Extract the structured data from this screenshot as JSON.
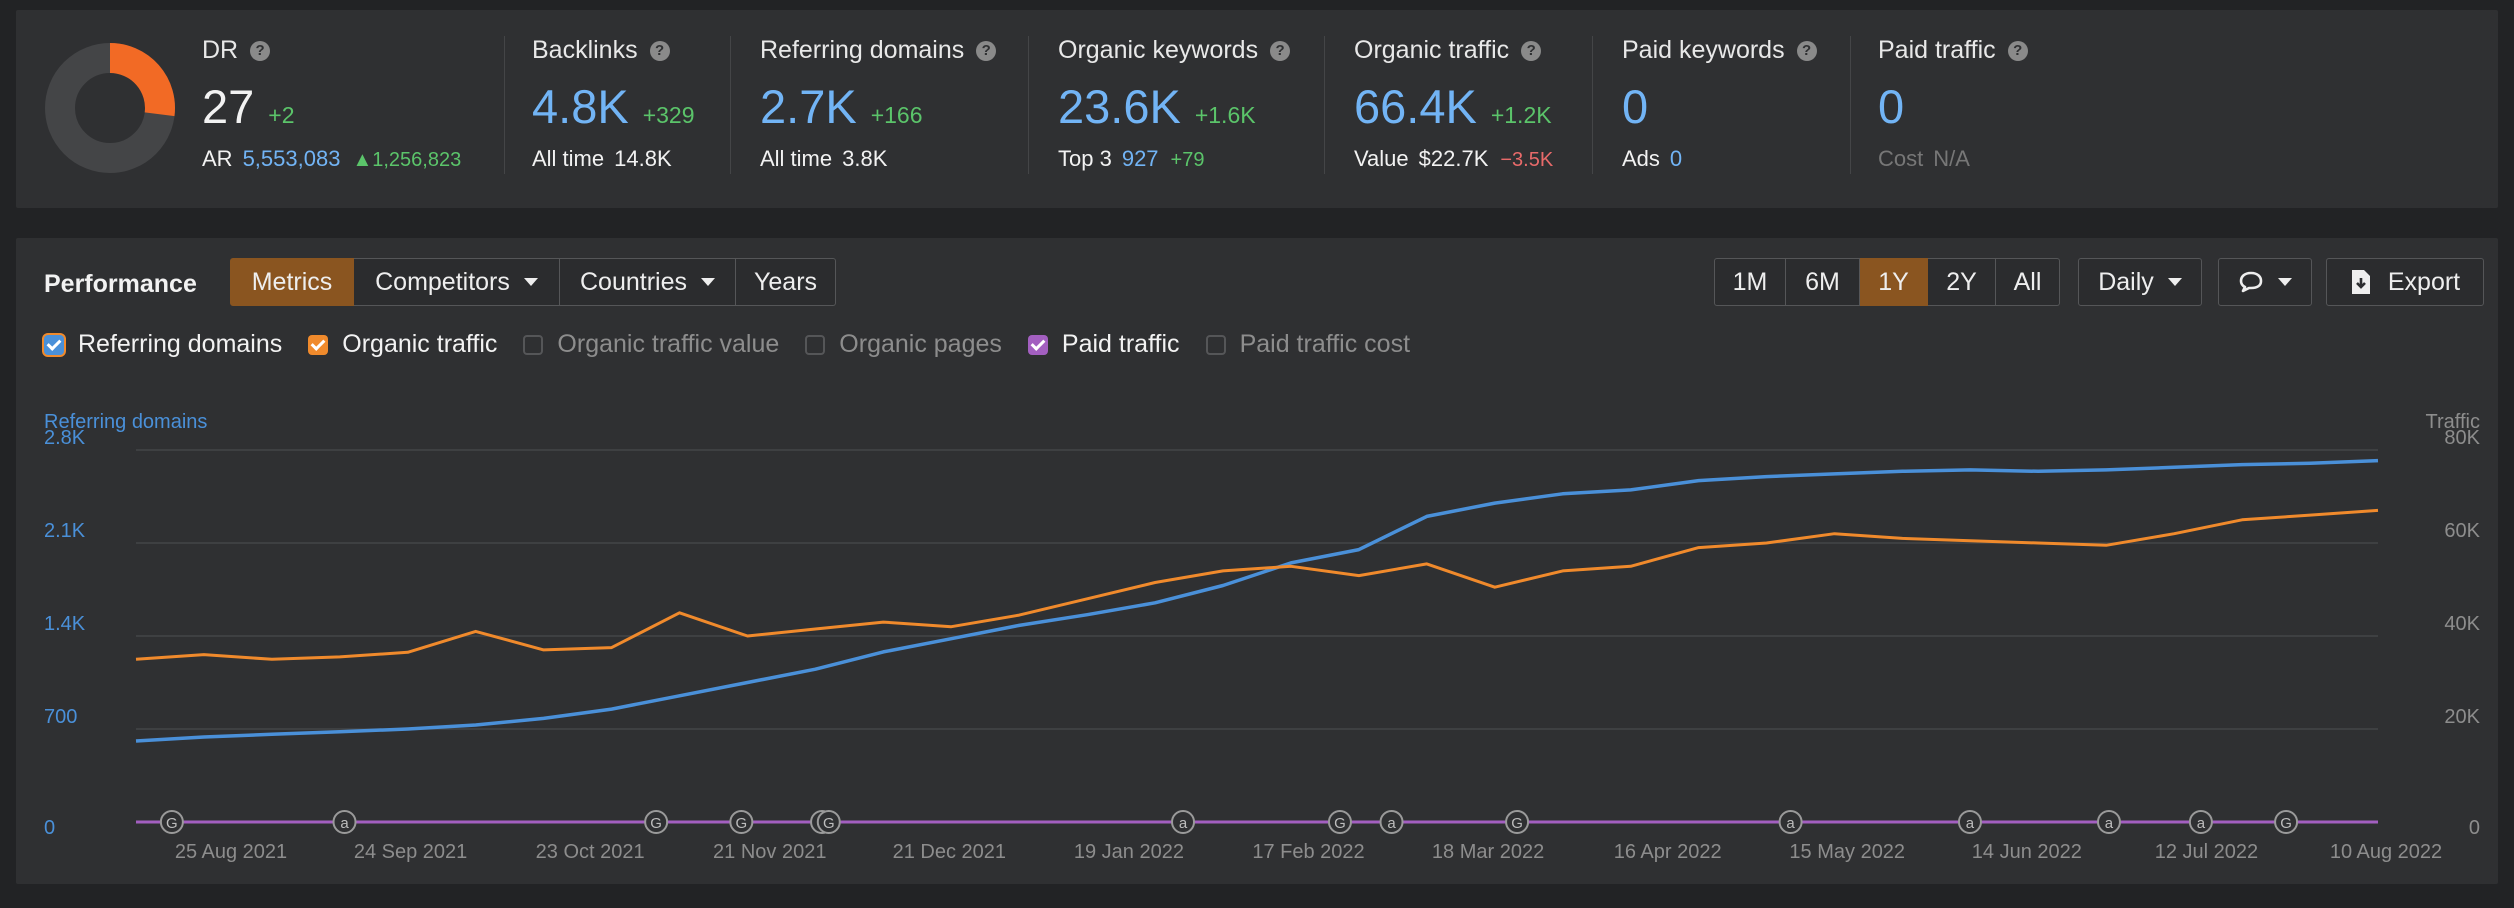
{
  "dr": {
    "title": "DR",
    "value": "27",
    "delta": "+2",
    "ar_label": "AR",
    "ar_value": "5,553,083",
    "ar_delta": "1,256,823",
    "gauge_fraction": 0.27
  },
  "backlinks": {
    "title": "Backlinks",
    "value": "4.8K",
    "delta": "+329",
    "sub_label": "All time",
    "sub_value": "14.8K"
  },
  "referring_domains": {
    "title": "Referring domains",
    "value": "2.7K",
    "delta": "+166",
    "sub_label": "All time",
    "sub_value": "3.8K"
  },
  "organic_keywords": {
    "title": "Organic keywords",
    "value": "23.6K",
    "delta": "+1.6K",
    "sub_label": "Top 3",
    "sub_value": "927",
    "sub_delta": "+79"
  },
  "organic_traffic": {
    "title": "Organic traffic",
    "value": "66.4K",
    "delta": "+1.2K",
    "sub_label": "Value",
    "sub_value": "$22.7K",
    "sub_delta": "−3.5K"
  },
  "paid_keywords": {
    "title": "Paid keywords",
    "value": "0",
    "sub_label": "Ads",
    "sub_value": "0"
  },
  "paid_traffic": {
    "title": "Paid traffic",
    "value": "0",
    "sub_label": "Cost",
    "sub_value": "N/A"
  },
  "toolbar": {
    "section_title": "Performance",
    "tabs": [
      {
        "label": "Metrics",
        "active": true
      },
      {
        "label": "Competitors",
        "caret": true
      },
      {
        "label": "Countries",
        "caret": true
      },
      {
        "label": "Years"
      }
    ],
    "ranges": [
      {
        "label": "1M"
      },
      {
        "label": "6M"
      },
      {
        "label": "1Y",
        "active": true
      },
      {
        "label": "2Y"
      },
      {
        "label": "All"
      }
    ],
    "interval": "Daily",
    "export": "Export"
  },
  "checkboxes": [
    {
      "label": "Referring domains",
      "checked": true,
      "color": "#4a90d9"
    },
    {
      "label": "Organic traffic",
      "checked": true,
      "color": "#f08a2c"
    },
    {
      "label": "Organic traffic value",
      "checked": false
    },
    {
      "label": "Organic pages",
      "checked": false
    },
    {
      "label": "Paid traffic",
      "checked": true,
      "color": "#a35fc0"
    },
    {
      "label": "Paid traffic cost",
      "checked": false
    }
  ],
  "chart_data": {
    "type": "line",
    "left_axis_label": "Referring domains",
    "right_axis_label": "Traffic",
    "left_ticks": [
      "0",
      "700",
      "1.4K",
      "2.1K",
      "2.8K"
    ],
    "right_ticks": [
      "0",
      "20K",
      "40K",
      "60K",
      "80K"
    ],
    "x_ticks": [
      "25 Aug 2021",
      "24 Sep 2021",
      "23 Oct 2021",
      "21 Nov 2021",
      "21 Dec 2021",
      "19 Jan 2022",
      "17 Feb 2022",
      "18 Mar 2022",
      "16 Apr 2022",
      "15 May 2022",
      "14 Jun 2022",
      "12 Jul 2022",
      "10 Aug 2022"
    ],
    "ylim_left": [
      0,
      2800
    ],
    "ylim_right": [
      0,
      80000
    ],
    "grid": true,
    "series": [
      {
        "name": "Referring domains",
        "axis": "left",
        "color": "#4a90d9",
        "values": [
          610,
          640,
          660,
          680,
          700,
          730,
          780,
          850,
          950,
          1050,
          1150,
          1280,
          1380,
          1480,
          1560,
          1650,
          1780,
          1950,
          2050,
          2300,
          2400,
          2470,
          2500,
          2570,
          2600,
          2620,
          2640,
          2650,
          2640,
          2650,
          2670,
          2690,
          2700,
          2720
        ]
      },
      {
        "name": "Organic traffic",
        "axis": "right",
        "color": "#f08a2c",
        "values": [
          35000,
          36000,
          35000,
          35500,
          36500,
          41000,
          37000,
          37500,
          45000,
          40000,
          41500,
          43000,
          42000,
          44500,
          48000,
          51500,
          54000,
          55000,
          53000,
          55500,
          50500,
          54000,
          55000,
          59000,
          60000,
          62000,
          61000,
          60500,
          60000,
          59500,
          62000,
          65000,
          66000,
          67000
        ]
      },
      {
        "name": "Paid traffic",
        "axis": "right",
        "color": "#a35fc0",
        "values": [
          0,
          0,
          0,
          0,
          0,
          0,
          0,
          0,
          0,
          0,
          0,
          0,
          0,
          0,
          0,
          0,
          0,
          0,
          0,
          0,
          0,
          0,
          0,
          0,
          0,
          0,
          0,
          0,
          0,
          0,
          0,
          0,
          0,
          0
        ]
      }
    ],
    "annotations": [
      {
        "x_frac": 0.016,
        "label": "G"
      },
      {
        "x_frac": 0.093,
        "label": "a"
      },
      {
        "x_frac": 0.232,
        "label": "G"
      },
      {
        "x_frac": 0.27,
        "label": "G"
      },
      {
        "x_frac": 0.306,
        "label": "G"
      },
      {
        "x_frac": 0.309,
        "label": "G"
      },
      {
        "x_frac": 0.467,
        "label": "a"
      },
      {
        "x_frac": 0.537,
        "label": "G"
      },
      {
        "x_frac": 0.56,
        "label": "a"
      },
      {
        "x_frac": 0.616,
        "label": "G"
      },
      {
        "x_frac": 0.738,
        "label": "a"
      },
      {
        "x_frac": 0.818,
        "label": "a"
      },
      {
        "x_frac": 0.88,
        "label": "a"
      },
      {
        "x_frac": 0.921,
        "label": "a"
      },
      {
        "x_frac": 0.959,
        "label": "G"
      }
    ]
  }
}
